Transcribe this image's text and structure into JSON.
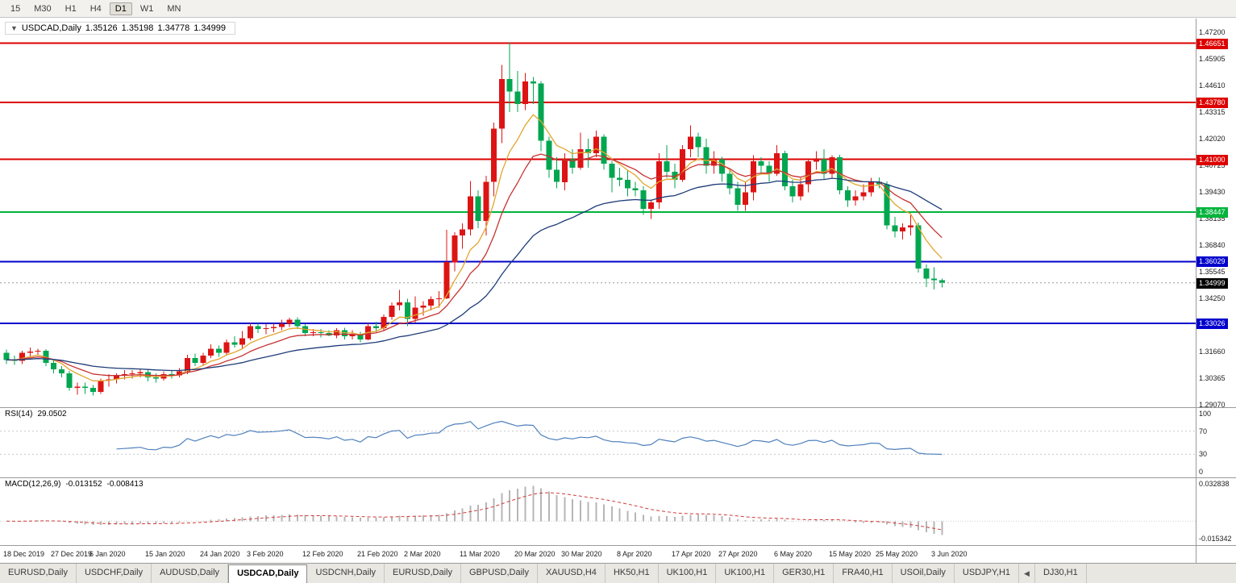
{
  "toolbar": {
    "timeframes": [
      "15",
      "M30",
      "H1",
      "H4",
      "D1",
      "W1",
      "MN"
    ],
    "active": "D1"
  },
  "icons": {
    "chart_marker": "▼",
    "scroll_left": "◀"
  },
  "chart": {
    "header": {
      "symbol": "USDCAD,Daily",
      "open": "1.35126",
      "high": "1.35198",
      "low": "1.34778",
      "close": "1.34999"
    },
    "price_axis": {
      "ticks": [
        "1.47200",
        "1.45905",
        "1.44610",
        "1.43315",
        "1.42020",
        "1.40725",
        "1.39430",
        "1.38135",
        "1.36840",
        "1.35545",
        "1.34250",
        "1.31660",
        "1.30365",
        "1.29070"
      ]
    }
  },
  "rsi": {
    "name": "RSI(14)",
    "value": "29.0502",
    "period": 14,
    "axis_labels": [
      100,
      70,
      30,
      0
    ]
  },
  "macd": {
    "name": "MACD(12,26,9)",
    "value_main": "-0.013152",
    "value_signal": "-0.008413",
    "fast": 12,
    "slow": 26,
    "signal": 9,
    "scale_top": 0.032838,
    "scale_bottom": -0.015342,
    "scale_top_label": "0.032838",
    "scale_bottom_label": "-0.015342"
  },
  "colors": {
    "bull": "#dd1414",
    "bear": "#00a650",
    "rsi": "#4f81bd",
    "macd_hist": "#b6b6b6",
    "macd_signal": "#d03a3a",
    "level_red": "#dd0000",
    "level_green": "#00b43c",
    "level_blue": "#0000cc",
    "current_black": "#000000"
  },
  "chart_data": {
    "type": "candlestick",
    "symbol": "USDCAD",
    "timeframe": "Daily",
    "y_range": [
      1.2895,
      1.4785
    ],
    "levels": [
      {
        "price": 1.46651,
        "label": "1.46651",
        "color": "#dd0000"
      },
      {
        "price": 1.4378,
        "label": "1.43780",
        "color": "#dd0000"
      },
      {
        "price": 1.41,
        "label": "1.41000",
        "color": "#dd0000"
      },
      {
        "price": 1.38447,
        "label": "1.38447",
        "color": "#00b43c"
      },
      {
        "price": 1.36029,
        "label": "1.36029",
        "color": "#0000cc"
      },
      {
        "price": 1.33026,
        "label": "1.33026",
        "color": "#0000cc"
      }
    ],
    "current_price": {
      "price": 1.34999,
      "label": "1.34999"
    },
    "moving_averages": [
      {
        "name": "ma-fast",
        "period": 7,
        "color": "#e2a52e"
      },
      {
        "name": "ma-mid",
        "period": 13,
        "color": "#c83232"
      },
      {
        "name": "ma-slow",
        "period": 34,
        "color": "#1e3c78"
      }
    ],
    "x_labels": [
      {
        "index": 0,
        "label": "18 Dec 2019"
      },
      {
        "index": 6,
        "label": "27 Dec 2019"
      },
      {
        "index": 11,
        "label": "6 Jan 2020"
      },
      {
        "index": 18,
        "label": "15 Jan 2020"
      },
      {
        "index": 25,
        "label": "24 Jan 2020"
      },
      {
        "index": 31,
        "label": "3 Feb 2020"
      },
      {
        "index": 38,
        "label": "12 Feb 2020"
      },
      {
        "index": 45,
        "label": "21 Feb 2020"
      },
      {
        "index": 51,
        "label": "2 Mar 2020"
      },
      {
        "index": 58,
        "label": "11 Mar 2020"
      },
      {
        "index": 65,
        "label": "20 Mar 2020"
      },
      {
        "index": 71,
        "label": "30 Mar 2020"
      },
      {
        "index": 78,
        "label": "8 Apr 2020"
      },
      {
        "index": 85,
        "label": "17 Apr 2020"
      },
      {
        "index": 91,
        "label": "27 Apr 2020"
      },
      {
        "index": 98,
        "label": "6 May 2020"
      },
      {
        "index": 105,
        "label": "15 May 2020"
      },
      {
        "index": 111,
        "label": "25 May 2020"
      },
      {
        "index": 118,
        "label": "3 Jun 2020"
      }
    ],
    "ohlc": [
      [
        1.316,
        1.3175,
        1.3105,
        1.3125
      ],
      [
        1.3125,
        1.3145,
        1.31,
        1.312
      ],
      [
        1.312,
        1.317,
        1.3105,
        1.316
      ],
      [
        1.316,
        1.3185,
        1.314,
        1.3165
      ],
      [
        1.3165,
        1.318,
        1.3145,
        1.317
      ],
      [
        1.317,
        1.3178,
        1.3095,
        1.311
      ],
      [
        1.311,
        1.3125,
        1.306,
        1.308
      ],
      [
        1.308,
        1.3095,
        1.304,
        1.306
      ],
      [
        1.306,
        1.3072,
        1.2975,
        1.299
      ],
      [
        1.299,
        1.3015,
        1.2955,
        1.2995
      ],
      [
        1.2995,
        1.3015,
        1.296,
        1.299
      ],
      [
        1.299,
        1.3002,
        1.2952,
        1.297
      ],
      [
        1.297,
        1.3035,
        1.296,
        1.3025
      ],
      [
        1.3025,
        1.3055,
        1.2995,
        1.303
      ],
      [
        1.303,
        1.306,
        1.301,
        1.305
      ],
      [
        1.305,
        1.3075,
        1.303,
        1.3055
      ],
      [
        1.3055,
        1.3075,
        1.3035,
        1.306
      ],
      [
        1.306,
        1.308,
        1.304,
        1.3065
      ],
      [
        1.3065,
        1.3082,
        1.302,
        1.304
      ],
      [
        1.304,
        1.306,
        1.3015,
        1.3035
      ],
      [
        1.3035,
        1.307,
        1.3025,
        1.3055
      ],
      [
        1.3055,
        1.3072,
        1.3035,
        1.305
      ],
      [
        1.305,
        1.3085,
        1.304,
        1.307
      ],
      [
        1.307,
        1.315,
        1.3055,
        1.3135
      ],
      [
        1.3135,
        1.3155,
        1.3095,
        1.311
      ],
      [
        1.311,
        1.316,
        1.31,
        1.3145
      ],
      [
        1.3145,
        1.32,
        1.3135,
        1.318
      ],
      [
        1.318,
        1.3195,
        1.314,
        1.316
      ],
      [
        1.316,
        1.3225,
        1.315,
        1.321
      ],
      [
        1.321,
        1.324,
        1.3185,
        1.32
      ],
      [
        1.32,
        1.3265,
        1.318,
        1.323
      ],
      [
        1.323,
        1.3305,
        1.322,
        1.329
      ],
      [
        1.329,
        1.3302,
        1.3255,
        1.3275
      ],
      [
        1.3275,
        1.33,
        1.325,
        1.328
      ],
      [
        1.328,
        1.3302,
        1.326,
        1.3285
      ],
      [
        1.3285,
        1.332,
        1.327,
        1.33
      ],
      [
        1.33,
        1.333,
        1.3285,
        1.332
      ],
      [
        1.332,
        1.3332,
        1.3275,
        1.329
      ],
      [
        1.329,
        1.33,
        1.324,
        1.3255
      ],
      [
        1.3255,
        1.3275,
        1.324,
        1.326
      ],
      [
        1.326,
        1.3275,
        1.3235,
        1.3255
      ],
      [
        1.3255,
        1.327,
        1.324,
        1.3245
      ],
      [
        1.3245,
        1.328,
        1.323,
        1.327
      ],
      [
        1.327,
        1.3282,
        1.3225,
        1.324
      ],
      [
        1.324,
        1.327,
        1.3225,
        1.325
      ],
      [
        1.325,
        1.3262,
        1.321,
        1.3225
      ],
      [
        1.3225,
        1.3305,
        1.322,
        1.329
      ],
      [
        1.329,
        1.331,
        1.326,
        1.328
      ],
      [
        1.328,
        1.3345,
        1.327,
        1.3335
      ],
      [
        1.3335,
        1.3405,
        1.332,
        1.339
      ],
      [
        1.339,
        1.3465,
        1.3365,
        1.3405
      ],
      [
        1.3405,
        1.3422,
        1.329,
        1.3325
      ],
      [
        1.3325,
        1.3435,
        1.3305,
        1.338
      ],
      [
        1.338,
        1.341,
        1.334,
        1.339
      ],
      [
        1.339,
        1.3435,
        1.3365,
        1.342
      ],
      [
        1.342,
        1.346,
        1.338,
        1.3425
      ],
      [
        1.3425,
        1.3758,
        1.342,
        1.36
      ],
      [
        1.36,
        1.3745,
        1.3555,
        1.373
      ],
      [
        1.373,
        1.379,
        1.3665,
        1.376
      ],
      [
        1.376,
        1.3995,
        1.373,
        1.392
      ],
      [
        1.392,
        1.395,
        1.3765,
        1.38
      ],
      [
        1.38,
        1.402,
        1.373,
        1.399
      ],
      [
        1.399,
        1.428,
        1.392,
        1.425
      ],
      [
        1.425,
        1.456,
        1.418,
        1.449
      ],
      [
        1.449,
        1.4668,
        1.433,
        1.443
      ],
      [
        1.443,
        1.453,
        1.433,
        1.437
      ],
      [
        1.437,
        1.452,
        1.434,
        1.448
      ],
      [
        1.448,
        1.45,
        1.437,
        1.447
      ],
      [
        1.447,
        1.4482,
        1.414,
        1.419
      ],
      [
        1.419,
        1.421,
        1.401,
        1.405
      ],
      [
        1.405,
        1.411,
        1.396,
        1.399
      ],
      [
        1.399,
        1.413,
        1.395,
        1.41
      ],
      [
        1.41,
        1.415,
        1.403,
        1.406
      ],
      [
        1.406,
        1.423,
        1.405,
        1.415
      ],
      [
        1.415,
        1.42,
        1.406,
        1.413
      ],
      [
        1.413,
        1.424,
        1.411,
        1.421
      ],
      [
        1.421,
        1.4222,
        1.405,
        1.408
      ],
      [
        1.408,
        1.4092,
        1.394,
        1.401
      ],
      [
        1.401,
        1.406,
        1.397,
        1.4
      ],
      [
        1.4,
        1.405,
        1.392,
        1.396
      ],
      [
        1.396,
        1.399,
        1.392,
        1.395
      ],
      [
        1.395,
        1.397,
        1.383,
        1.386
      ],
      [
        1.386,
        1.3905,
        1.381,
        1.389
      ],
      [
        1.389,
        1.413,
        1.386,
        1.409
      ],
      [
        1.409,
        1.417,
        1.401,
        1.404
      ],
      [
        1.404,
        1.408,
        1.396,
        1.4
      ],
      [
        1.4,
        1.417,
        1.399,
        1.415
      ],
      [
        1.415,
        1.4265,
        1.411,
        1.421
      ],
      [
        1.421,
        1.423,
        1.411,
        1.416
      ],
      [
        1.416,
        1.42,
        1.403,
        1.407
      ],
      [
        1.407,
        1.414,
        1.403,
        1.41
      ],
      [
        1.41,
        1.4112,
        1.399,
        1.403
      ],
      [
        1.403,
        1.405,
        1.393,
        1.396
      ],
      [
        1.396,
        1.399,
        1.385,
        1.388
      ],
      [
        1.388,
        1.399,
        1.385,
        1.394
      ],
      [
        1.394,
        1.412,
        1.39,
        1.409
      ],
      [
        1.409,
        1.411,
        1.403,
        1.407
      ],
      [
        1.407,
        1.409,
        1.399,
        1.403
      ],
      [
        1.403,
        1.417,
        1.402,
        1.413
      ],
      [
        1.413,
        1.4142,
        1.395,
        1.397
      ],
      [
        1.397,
        1.4,
        1.389,
        1.392
      ],
      [
        1.392,
        1.401,
        1.39,
        1.398
      ],
      [
        1.398,
        1.41,
        1.394,
        1.409
      ],
      [
        1.409,
        1.414,
        1.405,
        1.41
      ],
      [
        1.41,
        1.415,
        1.4,
        1.403
      ],
      [
        1.403,
        1.412,
        1.401,
        1.411
      ],
      [
        1.411,
        1.4122,
        1.393,
        1.395
      ],
      [
        1.395,
        1.397,
        1.387,
        1.39
      ],
      [
        1.39,
        1.395,
        1.3875,
        1.392
      ],
      [
        1.392,
        1.398,
        1.39,
        1.394
      ],
      [
        1.394,
        1.401,
        1.392,
        1.399
      ],
      [
        1.399,
        1.4012,
        1.396,
        1.398
      ],
      [
        1.398,
        1.3992,
        1.376,
        1.378
      ],
      [
        1.378,
        1.382,
        1.372,
        1.375
      ],
      [
        1.375,
        1.379,
        1.371,
        1.377
      ],
      [
        1.377,
        1.383,
        1.373,
        1.378
      ],
      [
        1.378,
        1.3792,
        1.355,
        1.357
      ],
      [
        1.357,
        1.359,
        1.348,
        1.352
      ],
      [
        1.352,
        1.3575,
        1.3468,
        1.3513
      ],
      [
        1.35126,
        1.35198,
        1.34778,
        1.34999
      ]
    ]
  },
  "tabs": {
    "items": [
      {
        "label": "EURUSD,Daily"
      },
      {
        "label": "USDCHF,Daily"
      },
      {
        "label": "AUDUSD,Daily"
      },
      {
        "label": "USDCAD,Daily",
        "active": true
      },
      {
        "label": "USDCNH,Daily"
      },
      {
        "label": "EURUSD,Daily"
      },
      {
        "label": "GBPUSD,Daily"
      },
      {
        "label": "XAUUSD,H4"
      },
      {
        "label": "HK50,H1"
      },
      {
        "label": "UK100,H1"
      },
      {
        "label": "UK100,H1"
      },
      {
        "label": "GER30,H1"
      },
      {
        "label": "FRA40,H1"
      },
      {
        "label": "USOil,Daily"
      },
      {
        "label": "USDJPY,H1"
      },
      {
        "type": "scroll-left"
      },
      {
        "label": "DJ30,H1"
      }
    ]
  }
}
